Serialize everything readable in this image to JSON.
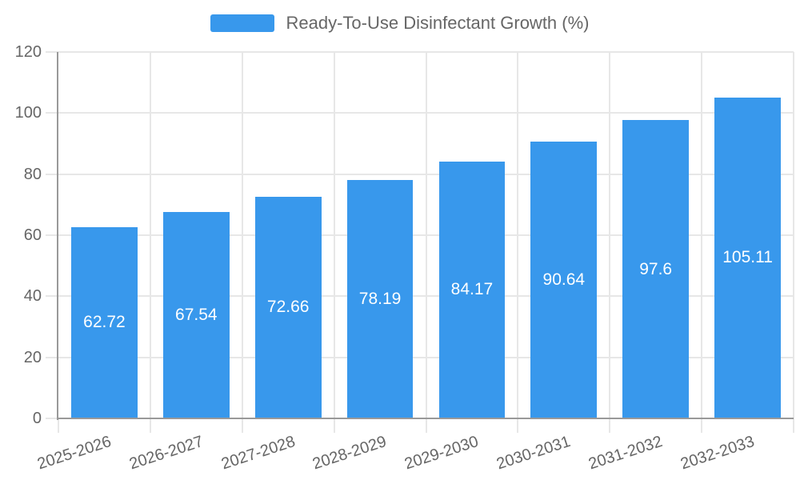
{
  "legend": {
    "label": "Ready-To-Use Disinfectant Growth (%)"
  },
  "chart_data": {
    "type": "bar",
    "title": "Ready-To-Use Disinfectant Growth (%)",
    "categories": [
      "2025-2026",
      "2026-2027",
      "2027-2028",
      "2028-2029",
      "2029-2030",
      "2030-2031",
      "2031-2032",
      "2032-2033"
    ],
    "values": [
      62.72,
      67.54,
      72.66,
      78.19,
      84.17,
      90.64,
      97.6,
      105.11
    ],
    "xlabel": "",
    "ylabel": "",
    "ylim": [
      0,
      120
    ],
    "yticks": [
      0,
      20,
      40,
      60,
      80,
      100,
      120
    ],
    "grid": true,
    "legend_position": "top-center",
    "x_label_rotation_deg": -18,
    "bar_color": "#3898ec",
    "value_label_color": "#ffffff",
    "axis_color": "#999999",
    "grid_color": "#e7e7e7",
    "text_color": "#666666"
  }
}
